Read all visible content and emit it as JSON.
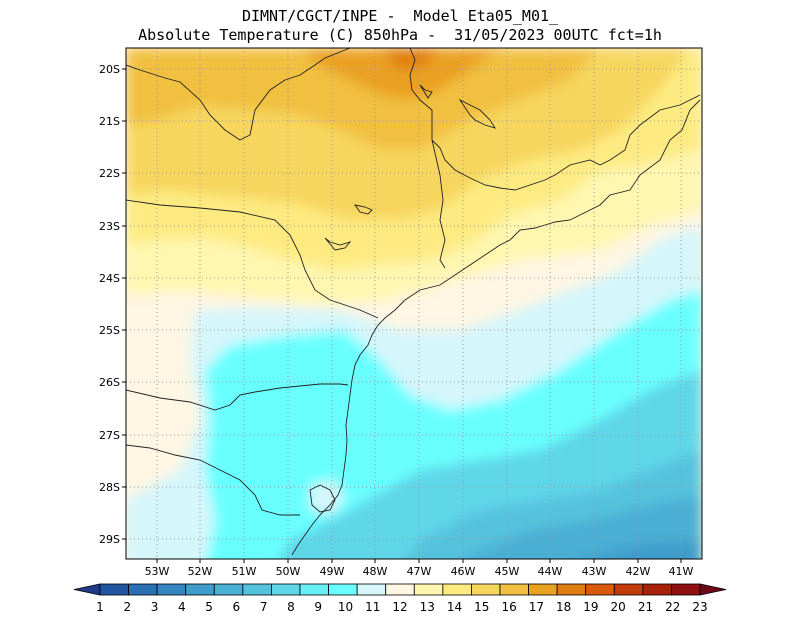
{
  "header": {
    "line1": "DIMNT/CGCT/INPE -  Model Eta05_M01_",
    "line2": "Absolute Temperature (C) 850hPa -  31/05/2023 00UTC fct=1h"
  },
  "map": {
    "lat_labels": [
      "20S",
      "21S",
      "22S",
      "23S",
      "24S",
      "25S",
      "26S",
      "27S",
      "28S",
      "29S"
    ],
    "lon_labels": [
      "53W",
      "52W",
      "51W",
      "50W",
      "49W",
      "48W",
      "47W",
      "46W",
      "45W",
      "44W",
      "43W",
      "42W",
      "41W"
    ],
    "lat_range_deg_south": [
      19.8,
      29.45
    ],
    "lon_range_deg_west": [
      53.6,
      40.6
    ],
    "grid": "dotted"
  },
  "colorbar": {
    "labels": [
      "1",
      "2",
      "3",
      "4",
      "5",
      "6",
      "7",
      "8",
      "9",
      "10",
      "11",
      "12",
      "13",
      "14",
      "15",
      "16",
      "17",
      "18",
      "19",
      "20",
      "21",
      "22",
      "23"
    ],
    "colors": [
      "#1f3c8c",
      "#2255a0",
      "#2a6fb2",
      "#3585c0",
      "#3f9ccb",
      "#4aafd4",
      "#55c2dd",
      "#5ed6e8",
      "#66f0f5",
      "#6affff",
      "#d5f6fb",
      "#fff6e3",
      "#fff6b0",
      "#fdeb82",
      "#f7d65e",
      "#f1c040",
      "#eaa020",
      "#e07d10",
      "#d85a0a",
      "#c33a0a",
      "#a82008",
      "#8e1010",
      "#6e0818"
    ]
  }
}
